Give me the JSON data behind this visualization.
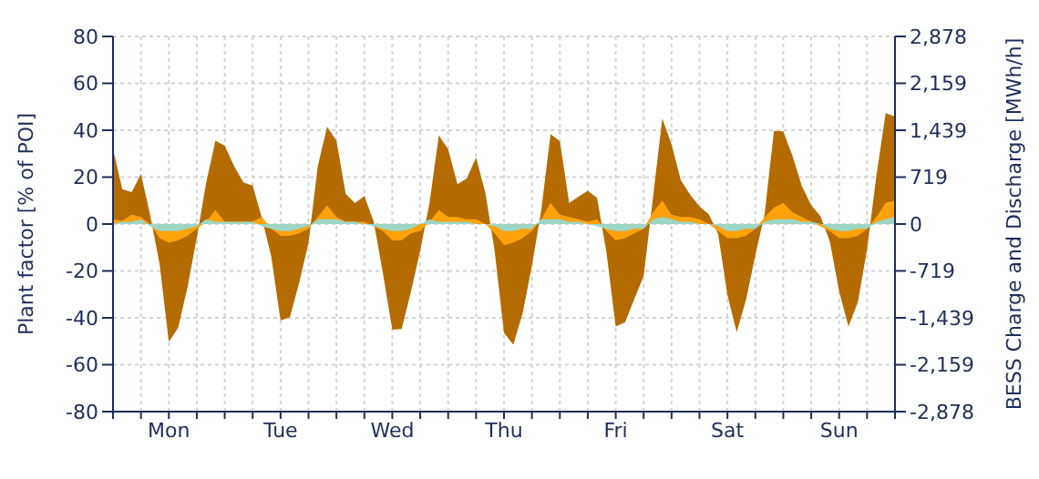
{
  "chart_data": {
    "type": "area",
    "ylabel": "Plant factor [% of POI]",
    "y2label": "BESS Charge and Discharge [MWh/h]",
    "categories": [
      null,
      null,
      null,
      null,
      null,
      null,
      "Mon",
      null,
      null,
      null,
      null,
      null,
      null,
      null,
      null,
      null,
      null,
      null,
      "Tue",
      null,
      null,
      null,
      null,
      null,
      null,
      null,
      null,
      null,
      null,
      null,
      "Wed",
      null,
      null,
      null,
      null,
      null,
      null,
      null,
      null,
      null,
      null,
      null,
      "Thu",
      null,
      null,
      null,
      null,
      null,
      null,
      null,
      null,
      null,
      null,
      null,
      "Fri",
      null,
      null,
      null,
      null,
      null,
      null,
      null,
      null,
      null,
      null,
      null,
      "Sat",
      null,
      null,
      null,
      null,
      null,
      null,
      null,
      null,
      null,
      null,
      null,
      "Sun",
      null,
      null,
      null,
      null,
      null,
      null
    ],
    "ylim": [
      -80,
      80
    ],
    "yticks": [
      -80,
      -60,
      -40,
      -20,
      0,
      20,
      40,
      60,
      80
    ],
    "y2lim": [
      -2878,
      2878
    ],
    "y2ticks": [
      {
        "value": -2878,
        "label": "-2,878"
      },
      {
        "value": -2159,
        "label": "-2,159"
      },
      {
        "value": -1439,
        "label": "-1,439"
      },
      {
        "value": -719,
        "label": "-719"
      },
      0,
      719,
      {
        "value": 1439,
        "label": "1,439"
      },
      {
        "value": 2159,
        "label": "2,159"
      },
      {
        "value": 2878,
        "label": "2,878"
      }
    ],
    "grid": true,
    "series": [
      {
        "color": "#b46b00",
        "axis": "y2",
        "values": [
          1150,
          535,
          490,
          770,
          130,
          -610,
          -1810,
          -1590,
          -970,
          -210,
          630,
          1280,
          1200,
          890,
          640,
          590,
          90,
          -500,
          -1480,
          -1430,
          -900,
          -290,
          890,
          1490,
          1280,
          460,
          320,
          430,
          40,
          -760,
          -1620,
          -1610,
          -1040,
          -410,
          330,
          1360,
          1150,
          610,
          700,
          1020,
          480,
          -420,
          -1670,
          -1850,
          -1370,
          -640,
          210,
          1380,
          1270,
          320,
          420,
          510,
          400,
          -430,
          -1570,
          -1510,
          -1150,
          -800,
          400,
          1620,
          1220,
          670,
          450,
          270,
          150,
          -150,
          -1090,
          -1660,
          -1160,
          -480,
          160,
          1430,
          1420,
          1040,
          580,
          290,
          120,
          -270,
          -1030,
          -1570,
          -1200,
          -390,
          740,
          1700,
          1650
        ]
      },
      {
        "color": "#ffa10a",
        "values": [
          2,
          1.5,
          4,
          3,
          0,
          -6,
          -8,
          -7,
          -5,
          -2,
          1,
          6,
          1,
          1,
          1,
          1,
          3,
          -2,
          -5,
          -5,
          -4,
          -2,
          3,
          8,
          3,
          1,
          1,
          1,
          -1,
          -3,
          -7,
          -7,
          -4,
          -3,
          1,
          6,
          3,
          3,
          2,
          2,
          0,
          -4,
          -9,
          -8,
          -6,
          -3,
          2,
          9,
          4,
          3,
          2,
          1,
          2,
          -3,
          -7,
          -6,
          -4,
          -2,
          5,
          10,
          4,
          3,
          3,
          2,
          0,
          -3,
          -6,
          -6,
          -5,
          -2,
          3,
          7,
          9,
          5,
          3,
          1,
          -1,
          -3,
          -6,
          -6,
          -5,
          -2,
          3,
          9,
          10
        ]
      },
      {
        "color": "#9dd6c4",
        "values": [
          0,
          1,
          1,
          2,
          -1,
          -3,
          -3,
          -3,
          -2,
          -1,
          2,
          1,
          1,
          1,
          1,
          1,
          -1,
          -2,
          -3,
          -3,
          -2,
          -1,
          2,
          2,
          2,
          1,
          1,
          0,
          -1,
          -2,
          -3,
          -3,
          -2,
          0,
          2,
          1,
          1,
          1,
          1,
          0,
          0,
          -1,
          -3,
          -3,
          -2,
          -2,
          2,
          2,
          2,
          1,
          1,
          0,
          -1,
          -2,
          -3,
          -3,
          -2,
          -2,
          2,
          3,
          2,
          1,
          1,
          0,
          0,
          -1,
          -3,
          -3,
          -2,
          -2,
          1,
          2,
          2,
          2,
          1,
          1,
          0,
          -2,
          -3,
          -3,
          -2,
          -2,
          1,
          2,
          3
        ]
      }
    ]
  }
}
